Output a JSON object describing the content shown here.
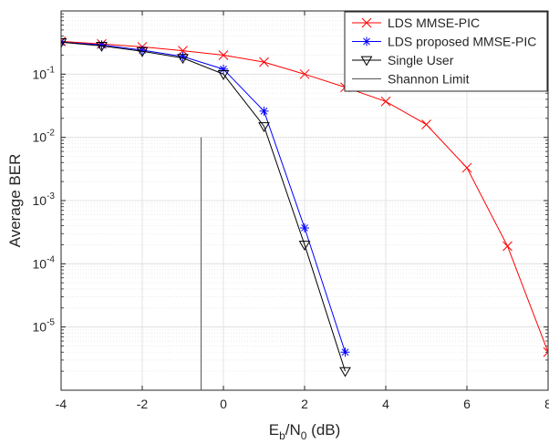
{
  "chart_data": {
    "type": "line",
    "title": "",
    "xlabel": {
      "main": "E",
      "sub1": "b",
      "mid": "/N",
      "sub2": "0",
      "tail": " (dB)"
    },
    "ylabel": "Average BER",
    "xlim": [
      -4,
      8
    ],
    "ylim": [
      1e-06,
      1
    ],
    "yscale": "log",
    "grid": true,
    "minor_grid": true,
    "legend_position": "top-right",
    "xticks": [
      -4,
      -2,
      0,
      2,
      4,
      6,
      8
    ],
    "xtick_labels": [
      "-4",
      "-2",
      "0",
      "2",
      "4",
      "6",
      "8"
    ],
    "ytick_exponents": [
      -1,
      -2,
      -3,
      -4,
      -5
    ],
    "ytick_base": "10",
    "series": [
      {
        "name": "LDS MMSE-PIC",
        "color": "#ff0000",
        "marker": "x",
        "x": [
          -4,
          -3,
          -2,
          -1,
          0,
          1,
          2,
          3,
          4,
          5,
          6,
          7,
          8
        ],
        "y": [
          0.33,
          0.3,
          0.27,
          0.235,
          0.2,
          0.155,
          0.1,
          0.062,
          0.037,
          0.016,
          0.0033,
          0.00019,
          4e-06
        ]
      },
      {
        "name": "LDS proposed MMSE-PIC",
        "color": "#0000ff",
        "marker": "asterisk",
        "x": [
          -4,
          -3,
          -2,
          -1,
          0,
          1,
          2,
          3
        ],
        "y": [
          0.32,
          0.29,
          0.24,
          0.19,
          0.12,
          0.026,
          0.00037,
          4e-06
        ]
      },
      {
        "name": "Single User",
        "color": "#000000",
        "marker": "triangle-down",
        "x": [
          -4,
          -3,
          -2,
          -1,
          0,
          1,
          2,
          3
        ],
        "y": [
          0.32,
          0.28,
          0.23,
          0.18,
          0.1,
          0.015,
          0.0002,
          2e-06
        ]
      },
      {
        "name": "Shannon Limit",
        "color": "#555555",
        "marker": "none",
        "x": [
          -0.55,
          -0.55
        ],
        "y": [
          1e-07,
          0.01
        ]
      }
    ]
  }
}
